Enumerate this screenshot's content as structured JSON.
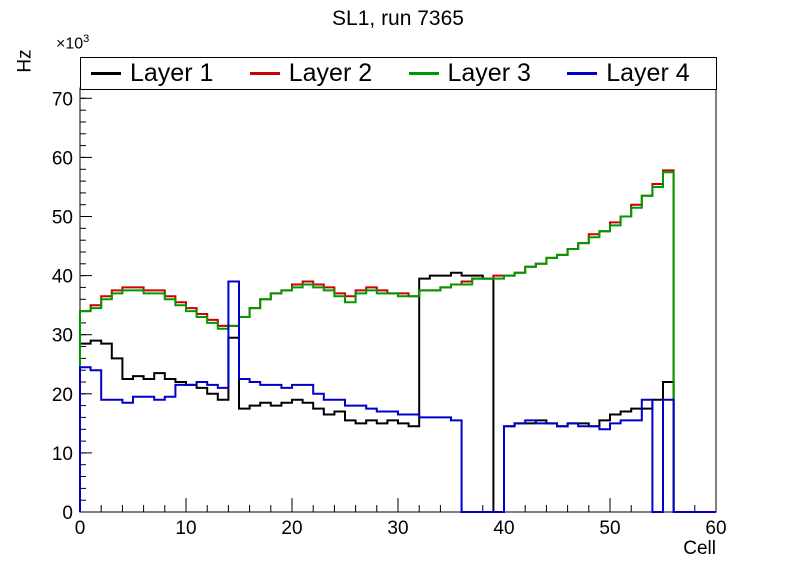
{
  "title": "SL1, run 7365",
  "y_axis": {
    "label": "Hz",
    "multiplier_base": "×10",
    "multiplier_exp": "3"
  },
  "x_axis": {
    "label": "Cell"
  },
  "legend": {
    "position": "top",
    "entries": [
      {
        "label": "Layer 1",
        "color": "#000000"
      },
      {
        "label": "Layer 2",
        "color": "#cc0000"
      },
      {
        "label": "Layer 3",
        "color": "#009900"
      },
      {
        "label": "Layer 4",
        "color": "#0000cc"
      }
    ]
  },
  "chart_data": {
    "type": "line",
    "subtype": "step-histogram",
    "title": "SL1, run 7365",
    "xlabel": "Cell",
    "ylabel": "Hz",
    "y_unit_multiplier": 1000,
    "xlim": [
      0,
      60
    ],
    "ylim": [
      0,
      71.75
    ],
    "x_ticks": [
      0,
      10,
      20,
      30,
      40,
      50,
      60
    ],
    "y_ticks": [
      0,
      10,
      20,
      30,
      40,
      50,
      60,
      70
    ],
    "x_minor_step": 2,
    "y_minor_step": 2,
    "bin_width": 1,
    "x_start": 0,
    "grid": false,
    "legend_position": "top",
    "series": [
      {
        "name": "Layer 1",
        "color": "#000000",
        "values": [
          28.5,
          29,
          28.5,
          26,
          22.5,
          23,
          22.5,
          23.5,
          22.5,
          22,
          21.5,
          21,
          20,
          19,
          29.5,
          17.5,
          18,
          18.5,
          18,
          18.5,
          19,
          18.5,
          17.5,
          16.5,
          17,
          15.5,
          15,
          15.5,
          15,
          15.5,
          15,
          14.5,
          39.5,
          40,
          40,
          40.5,
          40,
          40,
          39.5,
          0,
          14.5,
          15,
          15,
          15.5,
          15,
          14.5,
          15,
          15,
          14.5,
          15.5,
          16.5,
          17,
          17.5,
          17.5,
          19,
          22,
          0,
          0,
          0,
          0
        ]
      },
      {
        "name": "Layer 2",
        "color": "#cc0000",
        "values": [
          34,
          35,
          36.5,
          37.5,
          38,
          38,
          37.5,
          37.5,
          36.5,
          35.5,
          34.5,
          33.5,
          32.5,
          31.5,
          31.5,
          33,
          34.5,
          36,
          37,
          37.5,
          38.5,
          39,
          38.5,
          38,
          37,
          36.5,
          37.5,
          38,
          37.5,
          37,
          37,
          36.5,
          37.5,
          37.5,
          38,
          38.5,
          39,
          39.5,
          39.5,
          40,
          40,
          40.5,
          41.5,
          42,
          43,
          43.5,
          44.5,
          45.5,
          47,
          47.5,
          49,
          50,
          52,
          53.5,
          55.5,
          57.8,
          0,
          0,
          0,
          0
        ]
      },
      {
        "name": "Layer 3",
        "color": "#009900",
        "values": [
          34,
          34.5,
          36,
          37,
          37.5,
          37.5,
          37,
          37,
          36,
          35,
          34,
          33,
          32,
          31,
          31.5,
          33,
          34.5,
          36,
          37,
          37.5,
          38,
          38.5,
          38,
          37.5,
          36.5,
          35.5,
          37,
          37.5,
          37,
          37,
          36.5,
          36.5,
          37.5,
          37.5,
          38,
          38.5,
          38.5,
          39.5,
          39.5,
          39.5,
          40,
          40.5,
          41.5,
          42,
          43,
          43.5,
          44.5,
          45.5,
          46.5,
          47.5,
          48.5,
          50,
          51.5,
          53.5,
          55,
          57.5,
          0,
          0,
          0,
          0
        ]
      },
      {
        "name": "Layer 4",
        "color": "#0000cc",
        "values": [
          24.5,
          24,
          19,
          19,
          18.5,
          19.5,
          19.5,
          19,
          19.5,
          21.5,
          21.5,
          22,
          21.5,
          21,
          39,
          22.5,
          22,
          21.5,
          21.5,
          21,
          21.5,
          21.5,
          20,
          19,
          19,
          18,
          18,
          17.5,
          17,
          17,
          16.5,
          16.5,
          16,
          16,
          16,
          15.5,
          0,
          0,
          0,
          0,
          14.5,
          15,
          15.5,
          15,
          15,
          14.5,
          15,
          14.5,
          14.5,
          14,
          15,
          15.5,
          15.5,
          19,
          0,
          19,
          0,
          0,
          0,
          0
        ]
      }
    ]
  }
}
